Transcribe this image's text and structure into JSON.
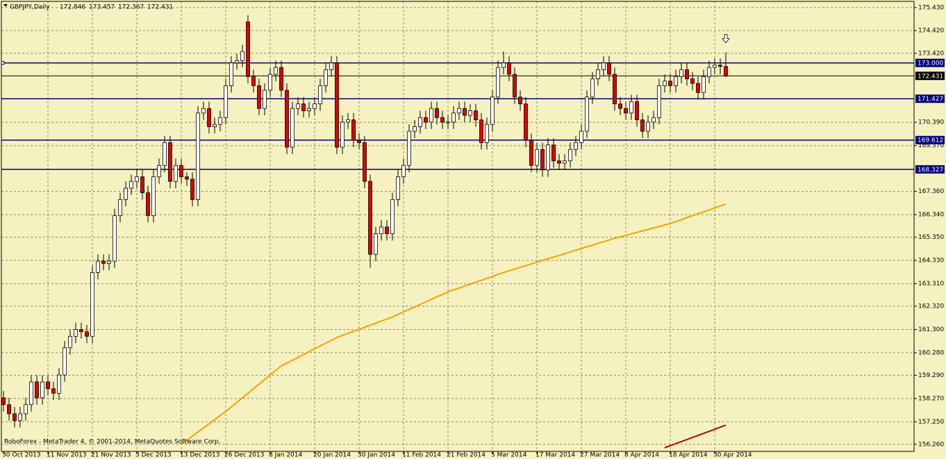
{
  "chart_data": {
    "type": "candlestick",
    "title": "GBPJPY,Daily",
    "footer": "RoboForex - MetaTrader 4, © 2001-2014, MetaQuotes Software Corp.",
    "categories": [
      "30 Oct 2013",
      null,
      null,
      null,
      null,
      null,
      null,
      null,
      "11 Nov 2013",
      null,
      null,
      null,
      null,
      null,
      null,
      null,
      "21 Nov 2013",
      null,
      null,
      null,
      null,
      null,
      null,
      null,
      "3 Dec 2013",
      null,
      null,
      null,
      null,
      null,
      null,
      null,
      "13 Dec 2013",
      null,
      null,
      null,
      null,
      null,
      null,
      null,
      "26 Dec 2013",
      null,
      null,
      null,
      null,
      null,
      null,
      null,
      "8 Jan 2014",
      null,
      null,
      null,
      null,
      null,
      null,
      null,
      "20 Jan 2014",
      null,
      null,
      null,
      null,
      null,
      null,
      null,
      "30 Jan 2014",
      null,
      null,
      null,
      null,
      null,
      null,
      null,
      "11 Feb 2014",
      null,
      null,
      null,
      null,
      null,
      null,
      null,
      "21 Feb 2014",
      null,
      null,
      null,
      null,
      null,
      null,
      null,
      "5 Mar 2014",
      null,
      null,
      null,
      null,
      null,
      null,
      null,
      "17 Mar 2014",
      null,
      null,
      null,
      null,
      null,
      null,
      null,
      "27 Mar 2014",
      null,
      null,
      null,
      null,
      null,
      null,
      null,
      "8 Apr 2014",
      null,
      null,
      null,
      null,
      null,
      null,
      null,
      "18 Apr 2014",
      null,
      null,
      null,
      null,
      null,
      null,
      null,
      "30 Apr 2014",
      null,
      null
    ],
    "open": [
      158.3,
      158.0,
      157.6,
      157.3,
      157.6,
      158.0,
      159.0,
      158.3,
      159.0,
      158.7,
      158.5,
      159.3,
      160.5,
      161.0,
      161.3,
      161.2,
      161.0,
      163.8,
      164.3,
      164.2,
      164.3,
      166.3,
      167.0,
      167.5,
      167.8,
      168.0,
      167.3,
      166.3,
      168.0,
      168.5,
      169.5,
      167.8,
      168.5,
      168.0,
      167.9,
      167.0,
      170.8,
      171.0,
      170.2,
      170.3,
      170.6,
      172.0,
      173.0,
      173.1,
      174.8,
      172.4,
      172.0,
      171.0,
      171.8,
      172.5,
      172.8,
      171.8,
      169.3,
      171.0,
      171.2,
      170.9,
      171.0,
      171.2,
      172.0,
      172.7,
      173.0,
      169.3,
      170.4,
      170.5,
      169.6,
      169.5,
      167.8,
      164.6,
      165.5,
      165.8,
      165.5,
      167.0,
      168.0,
      168.5,
      170.0,
      170.2,
      170.6,
      170.4,
      171.0,
      170.6,
      170.4,
      170.4,
      170.8,
      171.0,
      170.7,
      170.9,
      170.5,
      169.5,
      170.3,
      171.5,
      172.8,
      173.0,
      172.5,
      171.5,
      171.2,
      169.6,
      168.5,
      169.2,
      168.3,
      169.4,
      168.7,
      168.6,
      168.7,
      169.2,
      169.5,
      170.0,
      171.5,
      172.3,
      172.7,
      173.0,
      172.5,
      171.2,
      171.0,
      170.8,
      171.3,
      170.5,
      170.0,
      170.4,
      170.6,
      172.0,
      172.2,
      172.0,
      172.4,
      172.7,
      172.3,
      172.1,
      171.7,
      172.4,
      172.8,
      172.9,
      172.846
    ],
    "high": [
      158.6,
      158.3,
      157.9,
      157.9,
      158.3,
      159.3,
      159.3,
      159.3,
      159.3,
      159.0,
      159.6,
      160.8,
      161.3,
      161.6,
      161.6,
      161.5,
      164.1,
      164.6,
      164.6,
      164.6,
      166.6,
      167.3,
      167.8,
      168.1,
      168.3,
      168.3,
      167.6,
      168.3,
      168.8,
      169.8,
      169.8,
      168.8,
      168.8,
      168.2,
      168.2,
      171.1,
      171.3,
      171.3,
      170.6,
      170.9,
      172.3,
      173.3,
      173.4,
      173.8,
      175.1,
      172.7,
      172.3,
      172.1,
      172.8,
      173.1,
      173.1,
      172.1,
      171.3,
      171.5,
      171.5,
      171.3,
      171.5,
      172.3,
      173.0,
      173.3,
      173.3,
      170.7,
      170.8,
      170.8,
      169.9,
      169.8,
      168.1,
      165.8,
      166.1,
      166.1,
      167.3,
      168.3,
      168.8,
      170.3,
      170.5,
      170.9,
      170.9,
      171.3,
      171.3,
      170.9,
      170.7,
      171.1,
      171.3,
      171.3,
      171.2,
      171.2,
      170.8,
      170.6,
      171.8,
      173.1,
      173.5,
      173.3,
      172.8,
      171.8,
      171.5,
      169.9,
      169.5,
      169.5,
      169.7,
      169.7,
      169.0,
      169.0,
      169.5,
      169.8,
      170.3,
      171.8,
      172.6,
      173.0,
      173.3,
      173.3,
      172.8,
      171.5,
      171.3,
      171.6,
      171.6,
      170.8,
      170.7,
      170.9,
      172.3,
      172.5,
      172.5,
      172.7,
      173.0,
      173.0,
      172.6,
      172.4,
      172.7,
      173.1,
      173.2,
      173.2,
      173.457
    ],
    "low": [
      157.7,
      157.3,
      157.0,
      157.0,
      157.3,
      157.7,
      158.0,
      158.0,
      158.4,
      158.2,
      158.2,
      159.0,
      160.2,
      160.7,
      160.9,
      160.7,
      160.7,
      163.5,
      163.9,
      163.9,
      164.0,
      166.0,
      166.7,
      167.2,
      167.5,
      167.0,
      166.0,
      166.0,
      167.7,
      168.2,
      167.5,
      167.5,
      167.7,
      167.6,
      166.7,
      166.7,
      170.5,
      169.9,
      169.9,
      170.0,
      170.3,
      171.7,
      172.7,
      172.8,
      172.1,
      171.7,
      170.7,
      170.7,
      171.5,
      172.2,
      171.5,
      169.0,
      169.0,
      170.7,
      170.6,
      170.6,
      170.7,
      170.9,
      171.7,
      172.4,
      169.0,
      169.0,
      170.1,
      169.3,
      169.2,
      167.5,
      164.0,
      164.3,
      165.2,
      165.2,
      165.2,
      166.7,
      167.7,
      168.2,
      169.7,
      169.9,
      170.1,
      170.1,
      170.3,
      170.1,
      170.1,
      170.1,
      170.5,
      170.4,
      170.4,
      170.2,
      169.2,
      169.2,
      170.0,
      171.2,
      172.5,
      172.2,
      171.2,
      170.9,
      169.3,
      168.2,
      168.2,
      168.0,
      168.0,
      168.4,
      168.3,
      168.3,
      168.4,
      168.9,
      169.2,
      169.7,
      171.2,
      172.0,
      172.4,
      172.2,
      170.9,
      170.7,
      170.5,
      170.5,
      170.2,
      169.7,
      169.7,
      170.1,
      170.3,
      171.7,
      171.7,
      171.7,
      172.1,
      172.0,
      171.8,
      171.4,
      171.4,
      172.1,
      172.5,
      172.5,
      172.367
    ],
    "close": [
      158.0,
      157.6,
      157.3,
      157.6,
      158.0,
      159.0,
      158.3,
      159.0,
      158.7,
      158.5,
      159.3,
      160.5,
      161.0,
      161.3,
      161.2,
      161.0,
      163.8,
      164.3,
      164.2,
      164.3,
      166.3,
      167.0,
      167.5,
      167.8,
      168.0,
      167.3,
      166.3,
      168.0,
      168.5,
      169.5,
      167.8,
      168.5,
      168.0,
      167.9,
      167.0,
      170.8,
      171.0,
      170.2,
      170.3,
      170.6,
      172.0,
      173.0,
      173.1,
      173.5,
      172.4,
      172.0,
      171.0,
      171.8,
      172.5,
      172.8,
      171.8,
      169.3,
      171.0,
      171.2,
      170.9,
      171.0,
      171.2,
      172.0,
      172.7,
      173.0,
      169.3,
      170.4,
      170.5,
      169.6,
      169.5,
      167.8,
      164.6,
      165.5,
      165.8,
      165.5,
      167.0,
      168.0,
      168.5,
      170.0,
      170.2,
      170.6,
      170.4,
      171.0,
      170.6,
      170.4,
      170.4,
      170.8,
      171.0,
      170.7,
      170.9,
      170.5,
      169.5,
      170.3,
      171.5,
      172.8,
      173.0,
      172.5,
      171.5,
      171.2,
      169.6,
      168.5,
      169.2,
      168.3,
      169.4,
      168.7,
      168.6,
      168.7,
      169.2,
      169.5,
      170.0,
      171.5,
      172.3,
      172.7,
      173.0,
      172.5,
      171.2,
      171.0,
      170.8,
      171.3,
      170.5,
      170.0,
      170.4,
      170.6,
      172.0,
      172.2,
      172.0,
      172.4,
      172.7,
      172.3,
      172.1,
      171.7,
      172.4,
      172.8,
      172.9,
      172.846,
      172.431
    ],
    "up_color": "#ffffff",
    "down_color": "#dd0000",
    "indicators": [
      {
        "color": "#f5a300",
        "values": [
          null,
          null,
          null,
          null,
          null,
          null,
          null,
          null,
          null,
          null,
          null,
          null,
          null,
          null,
          null,
          null,
          null,
          null,
          null,
          null,
          null,
          null,
          null,
          null,
          null,
          null,
          null,
          null,
          null,
          null,
          null,
          null,
          156.26,
          156.44,
          156.62,
          156.8,
          156.98,
          157.16,
          157.34,
          157.52,
          157.7,
          157.9,
          158.1,
          158.3,
          158.5,
          158.7,
          158.9,
          159.1,
          159.3,
          159.5,
          159.7,
          159.83,
          159.95,
          160.08,
          160.2,
          160.33,
          160.45,
          160.58,
          160.7,
          160.83,
          160.95,
          161.04,
          161.13,
          161.22,
          161.31,
          161.4,
          161.49,
          161.58,
          161.67,
          161.76,
          161.85,
          161.96,
          162.07,
          162.18,
          162.29,
          162.4,
          162.51,
          162.62,
          162.73,
          162.84,
          162.95,
          163.04,
          163.12,
          163.21,
          163.29,
          163.38,
          163.46,
          163.55,
          163.63,
          163.72,
          163.8,
          163.88,
          163.95,
          164.03,
          164.1,
          164.18,
          164.25,
          164.33,
          164.4,
          164.48,
          164.55,
          164.63,
          164.7,
          164.78,
          164.85,
          164.93,
          165.0,
          165.08,
          165.15,
          165.23,
          165.3,
          165.37,
          165.43,
          165.5,
          165.56,
          165.63,
          165.69,
          165.76,
          165.82,
          165.89,
          165.95,
          166.04,
          166.12,
          166.21,
          166.29,
          166.38,
          166.46,
          166.55,
          166.63,
          166.72,
          166.8
        ]
      },
      {
        "color": "#a01010",
        "values": [
          null,
          null,
          null,
          null,
          null,
          null,
          null,
          null,
          null,
          null,
          null,
          null,
          null,
          null,
          null,
          null,
          null,
          null,
          null,
          null,
          null,
          null,
          null,
          null,
          null,
          null,
          null,
          null,
          null,
          null,
          null,
          null,
          null,
          null,
          null,
          null,
          null,
          null,
          null,
          null,
          null,
          null,
          null,
          null,
          null,
          null,
          null,
          null,
          null,
          null,
          null,
          null,
          null,
          null,
          null,
          null,
          null,
          null,
          null,
          null,
          null,
          null,
          null,
          null,
          null,
          null,
          null,
          null,
          null,
          null,
          null,
          null,
          null,
          null,
          null,
          null,
          null,
          null,
          null,
          null,
          null,
          null,
          null,
          null,
          null,
          null,
          null,
          null,
          null,
          null,
          null,
          null,
          null,
          null,
          null,
          null,
          null,
          null,
          null,
          null,
          null,
          null,
          null,
          null,
          null,
          null,
          null,
          null,
          null,
          null,
          null,
          null,
          null,
          null,
          null,
          null,
          null,
          null,
          null,
          156.11,
          156.2,
          156.29,
          156.38,
          156.47,
          156.56,
          156.65,
          156.74,
          156.83,
          156.92,
          157.01,
          157.1
        ]
      }
    ],
    "levels": [
      {
        "value": 173,
        "label": "173.000",
        "color": "#000080"
      },
      {
        "value": 172.431,
        "label": "172.431",
        "color": "#000000"
      },
      {
        "value": 171.427,
        "label": "171.427",
        "color": "#000080"
      },
      {
        "value": 169.612,
        "label": "169.612",
        "color": "#000080"
      },
      {
        "value": 168.327,
        "label": "168.327",
        "color": "#000080"
      }
    ],
    "ylim": [
      155.95,
      175.7
    ],
    "yticks": [
      {
        "value": 175.43,
        "label": "175.430"
      },
      {
        "value": 174.42,
        "label": "174.420"
      },
      {
        "value": 173.42,
        "label": "173.420"
      },
      {
        "value": 170.39,
        "label": "170.390"
      },
      {
        "value": 169.37,
        "label": "169.370"
      },
      {
        "value": 167.36,
        "label": "167.360"
      },
      {
        "value": 166.34,
        "label": "166.340"
      },
      {
        "value": 165.35,
        "label": "165.350"
      },
      {
        "value": 164.33,
        "label": "164.330"
      },
      {
        "value": 163.31,
        "label": "163.310"
      },
      {
        "value": 162.32,
        "label": "162.320"
      },
      {
        "value": 161.3,
        "label": "161.300"
      },
      {
        "value": 160.28,
        "label": "160.280"
      },
      {
        "value": 159.29,
        "label": "159.290"
      },
      {
        "value": 158.27,
        "label": "158.270"
      },
      {
        "value": 157.25,
        "label": "157.250"
      },
      {
        "value": 156.26,
        "label": "156.260"
      }
    ],
    "grid": true
  }
}
